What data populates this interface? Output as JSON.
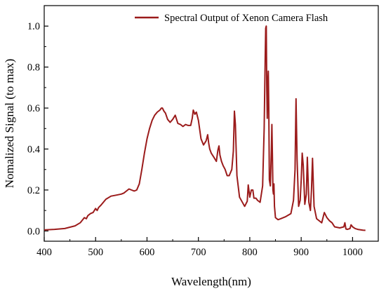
{
  "chart_data": {
    "type": "line",
    "xlabel": "Wavelength(nm)",
    "ylabel": "Nomalized Signal (to max)",
    "xlim": [
      400,
      1050
    ],
    "ylim": [
      -0.05,
      1.1
    ],
    "xticks": [
      400,
      500,
      600,
      700,
      800,
      900,
      1000
    ],
    "xtick_labels": [
      "400",
      "500",
      "600",
      "700",
      "800",
      "900",
      "1000"
    ],
    "yticks": [
      0.0,
      0.2,
      0.4,
      0.6,
      0.8,
      1.0
    ],
    "ytick_labels": [
      "0.0",
      "0.2",
      "0.4",
      "0.6",
      "0.8",
      "1.0"
    ],
    "legend_position": "top-right",
    "grid": false,
    "color": "#9b1b1b",
    "series": [
      {
        "name": "Spectral Output of Xenon Camera Flash",
        "x": [
          400,
          420,
          440,
          460,
          470,
          475,
          478,
          482,
          485,
          490,
          495,
          500,
          503,
          506,
          510,
          520,
          530,
          540,
          550,
          555,
          560,
          565,
          570,
          575,
          580,
          585,
          590,
          595,
          600,
          605,
          610,
          615,
          620,
          625,
          628,
          630,
          633,
          636,
          640,
          645,
          650,
          655,
          660,
          665,
          670,
          675,
          680,
          685,
          688,
          690,
          693,
          696,
          700,
          705,
          710,
          715,
          718,
          720,
          722,
          725,
          730,
          735,
          738,
          740,
          742,
          745,
          748,
          752,
          756,
          760,
          765,
          768,
          770,
          772,
          775,
          780,
          790,
          795,
          797,
          800,
          803,
          806,
          808,
          812,
          815,
          820,
          825,
          828,
          830,
          831,
          832,
          833,
          834,
          835,
          836,
          837,
          838,
          840,
          842,
          843,
          844,
          845,
          846,
          847,
          848,
          850,
          855,
          860,
          870,
          880,
          885,
          888,
          890,
          892,
          895,
          898,
          900,
          902,
          904,
          907,
          910,
          912,
          915,
          918,
          920,
          922,
          925,
          930,
          940,
          945,
          950,
          955,
          960,
          965,
          975,
          983,
          985,
          987,
          990,
          995,
          997,
          1000,
          1005,
          1010,
          1020,
          1025
        ],
        "y": [
          0.005,
          0.008,
          0.012,
          0.025,
          0.04,
          0.055,
          0.065,
          0.06,
          0.075,
          0.085,
          0.09,
          0.11,
          0.1,
          0.115,
          0.125,
          0.155,
          0.17,
          0.175,
          0.18,
          0.185,
          0.195,
          0.205,
          0.2,
          0.195,
          0.2,
          0.23,
          0.3,
          0.38,
          0.45,
          0.5,
          0.54,
          0.565,
          0.58,
          0.59,
          0.6,
          0.6,
          0.585,
          0.575,
          0.545,
          0.53,
          0.545,
          0.565,
          0.525,
          0.52,
          0.51,
          0.52,
          0.515,
          0.515,
          0.55,
          0.59,
          0.57,
          0.58,
          0.54,
          0.45,
          0.42,
          0.44,
          0.47,
          0.43,
          0.4,
          0.38,
          0.36,
          0.34,
          0.395,
          0.415,
          0.37,
          0.34,
          0.32,
          0.3,
          0.27,
          0.27,
          0.3,
          0.39,
          0.585,
          0.52,
          0.27,
          0.165,
          0.12,
          0.145,
          0.225,
          0.165,
          0.2,
          0.2,
          0.16,
          0.16,
          0.15,
          0.14,
          0.22,
          0.5,
          0.85,
          0.99,
          1.0,
          0.7,
          0.55,
          0.72,
          0.78,
          0.6,
          0.25,
          0.22,
          0.4,
          0.52,
          0.38,
          0.2,
          0.18,
          0.23,
          0.12,
          0.065,
          0.055,
          0.06,
          0.07,
          0.085,
          0.15,
          0.3,
          0.645,
          0.35,
          0.12,
          0.15,
          0.25,
          0.38,
          0.32,
          0.13,
          0.18,
          0.36,
          0.14,
          0.1,
          0.2,
          0.355,
          0.12,
          0.06,
          0.04,
          0.09,
          0.065,
          0.05,
          0.04,
          0.02,
          0.015,
          0.02,
          0.04,
          0.01,
          0.008,
          0.012,
          0.03,
          0.02,
          0.012,
          0.008,
          0.004,
          0.003
        ]
      }
    ]
  }
}
